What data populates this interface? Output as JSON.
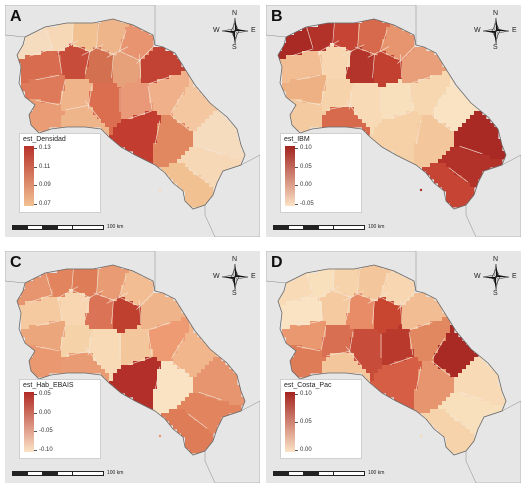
{
  "panels": [
    {
      "id": "a",
      "letter": "A",
      "legend": {
        "title": "est_Densidad",
        "ticks": [
          "0.13",
          "0.11",
          "0.09",
          "0.07"
        ],
        "colors": [
          "#b8322a",
          "#f2c192"
        ]
      },
      "compass": {
        "n": "N",
        "s": "S",
        "e": "E",
        "w": "W"
      },
      "scale": "100 km",
      "region_colors": [
        "#f6dcbf",
        "#f6d8b6",
        "#f2c192",
        "#eeb48a",
        "#e89470",
        "#d86c4e",
        "#c84c3a",
        "#d27050",
        "#e6a07a",
        "#c24234",
        "#de7a5a",
        "#ea9d74",
        "#f0b48a",
        "#dc6e50",
        "#e99878",
        "#efb08a",
        "#f4c7a0",
        "#e18860",
        "#c23c30"
      ]
    },
    {
      "id": "b",
      "letter": "B",
      "legend": {
        "title": "est_IBM",
        "ticks": [
          "0.10",
          "0.05",
          "0.00",
          "-0.05"
        ],
        "colors": [
          "#a3231f",
          "#fbe3c6"
        ]
      },
      "compass": {
        "n": "N",
        "s": "S",
        "e": "E",
        "w": "W"
      },
      "scale": "100 km",
      "region_colors": [
        "#a92a24",
        "#b2322a",
        "#c64434",
        "#d76a4c",
        "#e7956f",
        "#f2bd93",
        "#f8d6b1",
        "#b3342a",
        "#c2402f",
        "#e9a07a",
        "#eeb184",
        "#f4cba1",
        "#f6d3ab",
        "#f8dbb6",
        "#f9e0bd",
        "#f7d7b0",
        "#fae3c3",
        "#f4c69c",
        "#f6d0a6"
      ]
    },
    {
      "id": "c",
      "letter": "C",
      "legend": {
        "title": "est_Hab_EBAIS",
        "ticks": [
          "0.05",
          "0.00",
          "-0.05",
          "-0.10"
        ],
        "colors": [
          "#b02b25",
          "#fbe3c6"
        ]
      },
      "compass": {
        "n": "N",
        "s": "S",
        "e": "E",
        "w": "W"
      },
      "scale": "100 km",
      "region_colors": [
        "#e7956f",
        "#e2855f",
        "#de7c58",
        "#e99c74",
        "#f2bd93",
        "#f5caa0",
        "#f7d6b1",
        "#db7456",
        "#c0402f",
        "#f0b48a",
        "#eca67c",
        "#e9986f",
        "#f6d2a9",
        "#f8dbb6",
        "#f4c69c",
        "#ee9a72",
        "#f1b68c",
        "#fae3c3",
        "#b3302a"
      ]
    },
    {
      "id": "d",
      "letter": "D",
      "legend": {
        "title": "est_Costa_Pac",
        "ticks": [
          "0.10",
          "0.05",
          "0.00"
        ],
        "colors": [
          "#a3231f",
          "#fbe3c6"
        ]
      },
      "compass": {
        "n": "N",
        "s": "S",
        "e": "E",
        "w": "W"
      },
      "scale": "100 km",
      "region_colors": [
        "#f8dbb6",
        "#f9e0bd",
        "#f6d3ab",
        "#f4c69c",
        "#f7d6b1",
        "#fae3c3",
        "#f5caa0",
        "#e88c67",
        "#c8452f",
        "#f2bd93",
        "#e9986f",
        "#df7c58",
        "#d96f52",
        "#c84c3a",
        "#b9392c",
        "#e18860",
        "#a92a24",
        "#e7956f",
        "#d65e45"
      ]
    }
  ]
}
